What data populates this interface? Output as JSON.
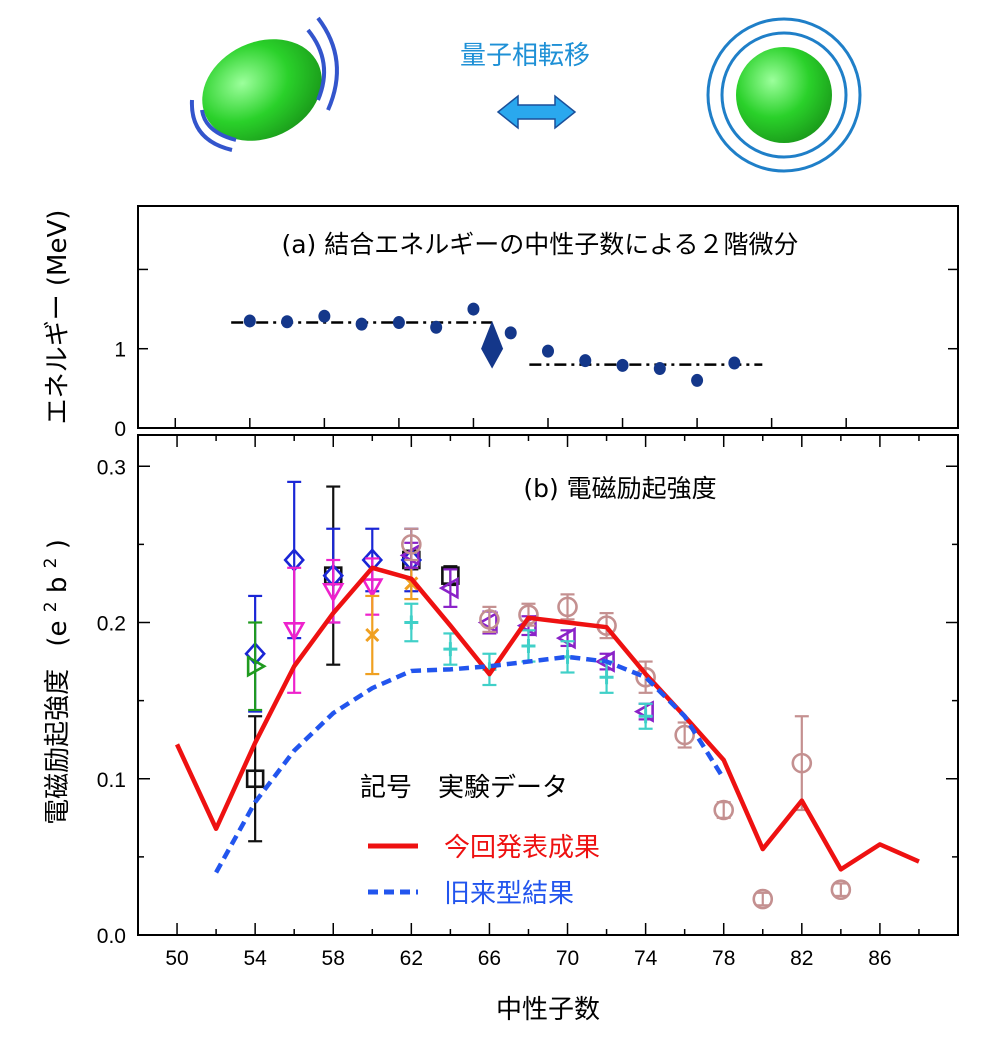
{
  "header": {
    "transition_label": "量子相転移"
  },
  "chart_data": [
    {
      "panel": "a",
      "type": "scatter",
      "title": "(a) 結合エネルギーの中性子数による２階微分",
      "ylabel": "エネルギー (MeV)",
      "xlim": [
        48,
        92
      ],
      "ylim": [
        0,
        2.8
      ],
      "y_ticks": [
        "0",
        "1"
      ],
      "y_tick_values": [
        0,
        1
      ],
      "points_x": [
        54,
        56,
        58,
        60,
        62,
        64,
        66,
        68,
        70,
        72,
        74,
        76,
        78,
        80
      ],
      "points_y": [
        1.35,
        1.34,
        1.41,
        1.31,
        1.33,
        1.27,
        1.5,
        1.2,
        0.97,
        0.85,
        0.79,
        0.75,
        0.6,
        0.82
      ],
      "special_point": {
        "x": 67,
        "y": 1.0,
        "y_lo": 0.9,
        "y_hi": 1.2
      },
      "guide_lines": [
        {
          "x": [
            53,
            67
          ],
          "y": 1.33
        },
        {
          "x": [
            69,
            81.5
          ],
          "y": 0.8
        }
      ],
      "colors": {
        "points": "#14378a"
      }
    },
    {
      "panel": "b",
      "type": "scatter",
      "title": "(b) 電磁励起強度",
      "ylabel": "電磁励起強度（e²b²）",
      "ylabel_main": "電磁励起強度",
      "ylabel_unit_parts": [
        "(e",
        "2",
        "b",
        "2",
        ")"
      ],
      "xlabel": "中性子数",
      "xlim": [
        48,
        90
      ],
      "ylim": [
        0,
        0.32
      ],
      "x_ticks": [
        "50",
        "54",
        "58",
        "62",
        "66",
        "70",
        "74",
        "78",
        "82",
        "86"
      ],
      "x_tick_values": [
        50,
        54,
        58,
        62,
        66,
        70,
        74,
        78,
        82,
        86
      ],
      "y_ticks": [
        "0.0",
        "0.1",
        "0.2",
        "0.3"
      ],
      "y_tick_values": [
        0.0,
        0.1,
        0.2,
        0.3
      ],
      "series": [
        {
          "name": "今回発表成果",
          "kind": "line",
          "color": "#ee1111",
          "x": [
            50,
            52,
            54,
            56,
            58,
            60,
            62,
            64,
            66,
            68,
            70,
            72,
            74,
            76,
            78,
            80,
            82,
            84,
            86,
            88
          ],
          "y": [
            0.122,
            0.068,
            0.123,
            0.172,
            0.206,
            0.235,
            0.228,
            0.198,
            0.167,
            0.203,
            0.2,
            0.197,
            0.167,
            0.14,
            0.112,
            0.055,
            0.086,
            0.042,
            0.058,
            0.047
          ]
        },
        {
          "name": "旧来型結果",
          "kind": "dashed-line",
          "color": "#2255ee",
          "x": [
            52,
            54,
            56,
            58,
            60,
            62,
            64,
            66,
            68,
            70,
            72,
            74,
            76,
            78
          ],
          "y": [
            0.04,
            0.085,
            0.118,
            0.142,
            0.158,
            0.169,
            0.17,
            0.172,
            0.175,
            0.178,
            0.175,
            0.165,
            0.14,
            0.1
          ]
        },
        {
          "name": "exp-black-square",
          "marker": "square",
          "color": "#111111",
          "x": [
            54,
            58,
            62,
            64
          ],
          "y": [
            0.1,
            0.23,
            0.24,
            0.23
          ],
          "err": [
            0.04,
            0.057,
            0.006,
            0.006
          ]
        },
        {
          "name": "exp-blue-diamond",
          "marker": "diamond",
          "color": "#1a26d6",
          "x": [
            54,
            56,
            58,
            60,
            62
          ],
          "y": [
            0.18,
            0.24,
            0.23,
            0.24,
            0.24
          ],
          "err": [
            0.037,
            0.05,
            0.03,
            0.02,
            0.02
          ]
        },
        {
          "name": "exp-green-right-triangle",
          "marker": "tri-right",
          "color": "#1f9a1f",
          "x": [
            54
          ],
          "y": [
            0.172
          ],
          "err": [
            0.028
          ]
        },
        {
          "name": "exp-magenta-down-triangle",
          "marker": "tri-down",
          "color": "#ee22cc",
          "x": [
            56,
            58,
            60
          ],
          "y": [
            0.195,
            0.22,
            0.223
          ],
          "err": [
            0.04,
            0.02,
            0.018
          ]
        },
        {
          "name": "exp-orange-cross",
          "marker": "cross",
          "color": "#f0a020",
          "x": [
            60,
            62
          ],
          "y": [
            0.192,
            0.225
          ],
          "err": [
            0.025,
            0.01
          ]
        },
        {
          "name": "exp-purple-left-triangle",
          "marker": "tri-left",
          "color": "#8a22c8",
          "x": [
            62,
            64,
            66,
            68,
            70,
            72,
            74
          ],
          "y": [
            0.243,
            0.222,
            0.2,
            0.198,
            0.19,
            0.175,
            0.143
          ],
          "err": [
            0.008,
            0.012,
            0.007,
            0.006,
            0.005,
            0.005,
            0.005
          ]
        },
        {
          "name": "exp-cyan-plus",
          "marker": "plus",
          "color": "#40d0c8",
          "x": [
            62,
            64,
            66,
            68,
            70,
            72,
            74
          ],
          "y": [
            0.2,
            0.183,
            0.17,
            0.185,
            0.178,
            0.165,
            0.14
          ],
          "err": [
            0.012,
            0.01,
            0.01,
            0.01,
            0.01,
            0.01,
            0.008
          ]
        },
        {
          "name": "exp-rose-circle",
          "marker": "circle",
          "color": "#c49090",
          "x": [
            62,
            66,
            68,
            70,
            72,
            74,
            76,
            78,
            80,
            82,
            84
          ],
          "y": [
            0.25,
            0.202,
            0.205,
            0.21,
            0.198,
            0.165,
            0.128,
            0.08,
            0.023,
            0.11,
            0.029
          ],
          "err": [
            0.01,
            0.008,
            0.007,
            0.008,
            0.008,
            0.01,
            0.008,
            0.005,
            0.004,
            0.03,
            0.004
          ]
        }
      ],
      "legend": {
        "placement": "lower-center",
        "header": "記号　実験データ",
        "entries": [
          "今回発表成果",
          "旧来型結果"
        ]
      }
    }
  ]
}
